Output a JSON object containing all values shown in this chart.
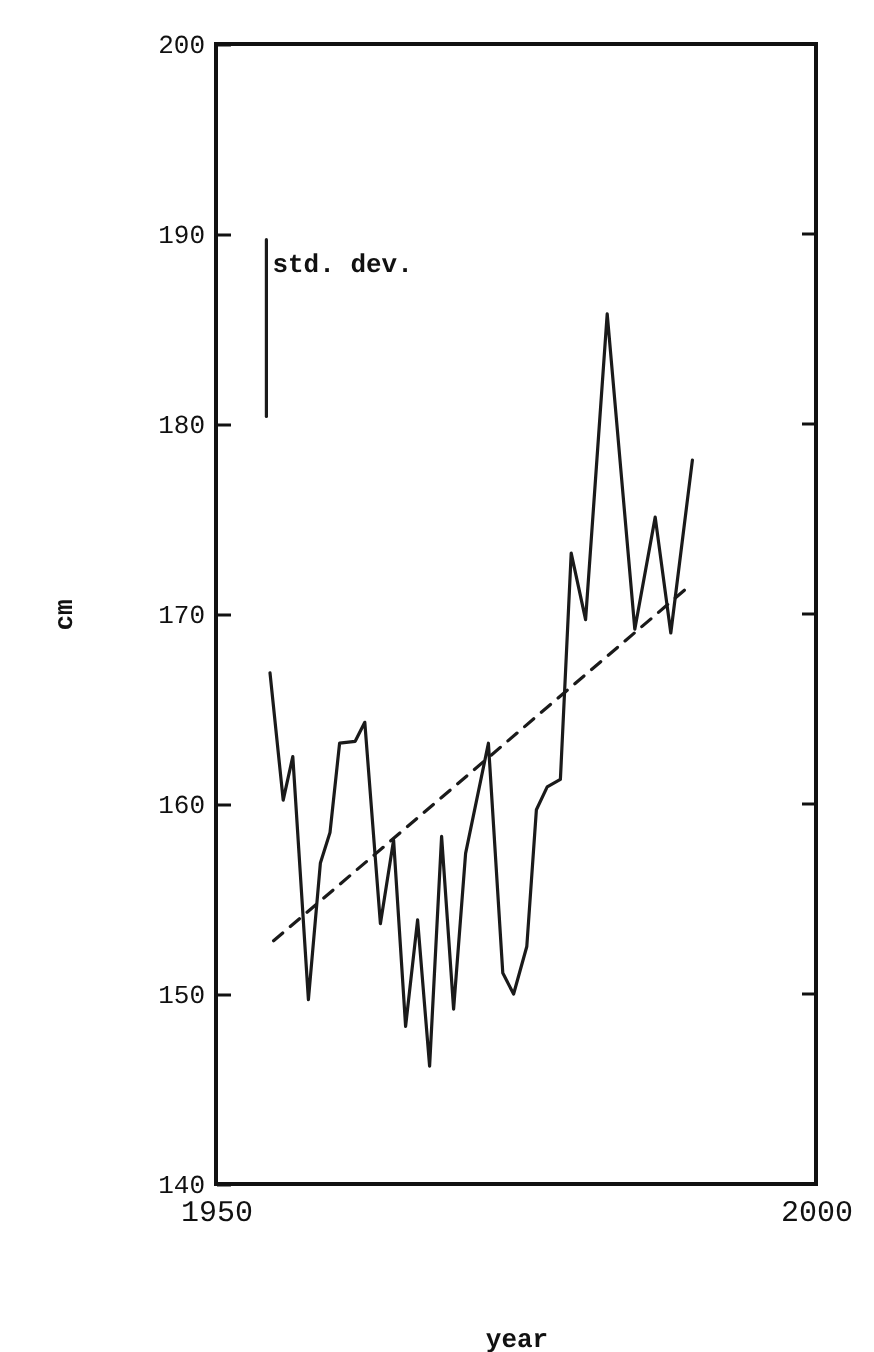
{
  "chart_data": {
    "type": "line",
    "xlabel": "year",
    "ylabel": "cm",
    "xlim": [
      1950,
      2000
    ],
    "xticks": [
      1950,
      2000
    ],
    "ylim": [
      140,
      200
    ],
    "yticks": [
      140,
      150,
      160,
      170,
      180,
      190,
      200
    ],
    "grid": false,
    "legend": false,
    "marker": "none",
    "series": [
      {
        "color": "#1a1a1a",
        "line_style": "solid",
        "x": [
          1954.5,
          1955.6,
          1956.4,
          1957.7,
          1958.7,
          1959.5,
          1960.3,
          1961.6,
          1962.4,
          1963.7,
          1964.8,
          1965.8,
          1966.8,
          1967.8,
          1968.8,
          1969.8,
          1970.8,
          1972.7,
          1973.9,
          1974.8,
          1975.9,
          1976.7,
          1977.6,
          1978.7,
          1979.6,
          1980.8,
          1982.6,
          1984.9,
          1986.6,
          1987.9,
          1989.7
        ],
        "values": [
          166.9,
          160.2,
          162.5,
          149.7,
          156.9,
          158.5,
          163.2,
          163.3,
          164.3,
          153.7,
          158.1,
          148.3,
          153.9,
          146.2,
          158.3,
          149.2,
          157.4,
          163.2,
          151.1,
          150.0,
          152.5,
          159.7,
          160.9,
          161.3,
          173.2,
          169.7,
          185.8,
          169.2,
          175.1,
          169.0,
          178.1
        ]
      },
      {
        "type": "line",
        "color": "#1a1a1a",
        "line_style": "dashed",
        "x": [
          1954.8,
          1989.5
        ],
        "values": [
          152.8,
          171.5
        ]
      },
      {
        "type": "line",
        "name": "std. dev.",
        "color": "#1a1a1a",
        "line_style": "solid",
        "x": [
          1954.2,
          1954.2
        ],
        "values": [
          180.4,
          189.7
        ]
      }
    ]
  }
}
